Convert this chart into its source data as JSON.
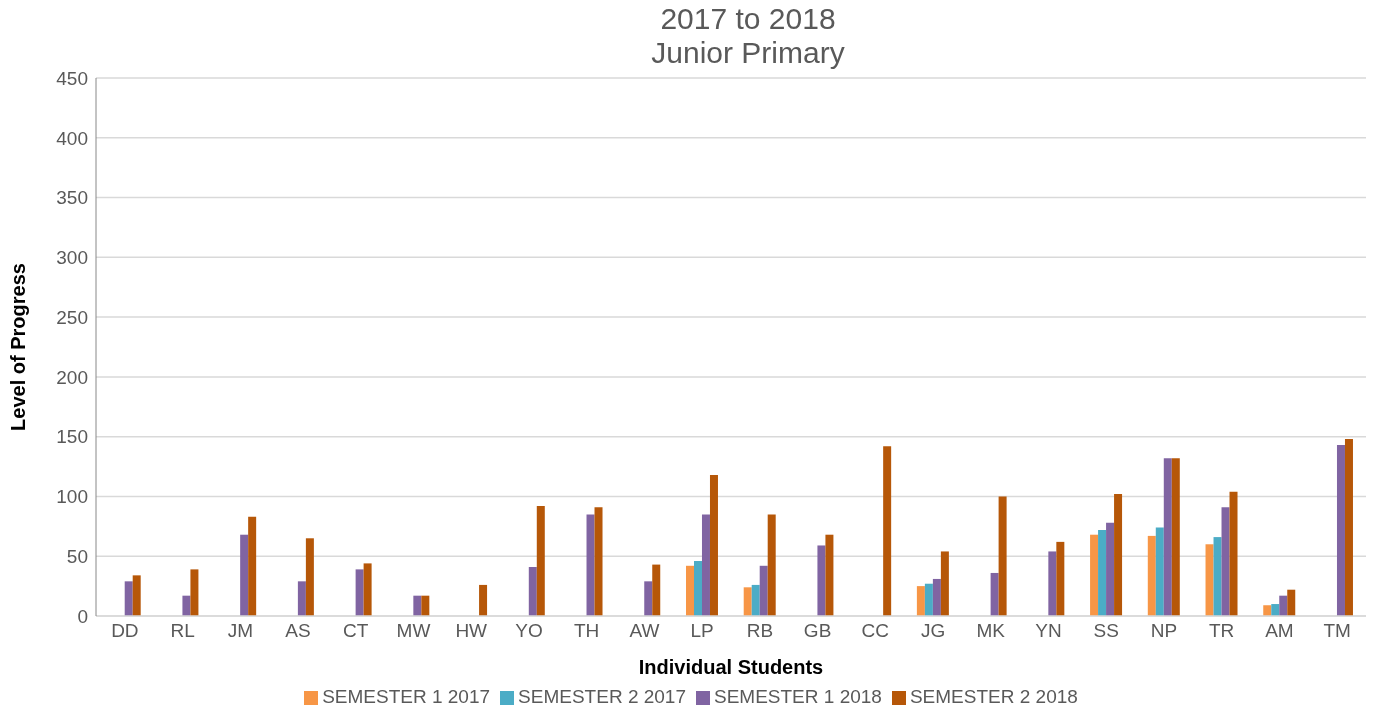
{
  "chart_data": {
    "type": "bar",
    "title": "2017 to 2018",
    "subtitle": "Junior Primary",
    "xlabel": "Individual Students",
    "ylabel": "Level of Progress",
    "categories": [
      "DD",
      "RL",
      "JM",
      "AS",
      "CT",
      "MW",
      "HW",
      "YO",
      "TH",
      "AW",
      "LP",
      "RB",
      "GB",
      "CC",
      "JG",
      "MK",
      "YN",
      "SS",
      "NP",
      "TR",
      "AM",
      "TM"
    ],
    "series": [
      {
        "name": "SEMESTER 1 2017",
        "color": "#f79646",
        "values": [
          null,
          null,
          null,
          null,
          null,
          null,
          null,
          null,
          null,
          null,
          42,
          24,
          null,
          null,
          25,
          null,
          null,
          68,
          67,
          60,
          9,
          null
        ]
      },
      {
        "name": "SEMESTER 2 2017",
        "color": "#4bacc6",
        "values": [
          null,
          null,
          null,
          null,
          null,
          null,
          null,
          null,
          null,
          null,
          46,
          26,
          null,
          null,
          27,
          null,
          null,
          72,
          74,
          66,
          10,
          null
        ]
      },
      {
        "name": "SEMESTER 1 2018",
        "color": "#8064a2",
        "values": [
          29,
          17,
          68,
          29,
          39,
          17,
          null,
          41,
          85,
          29,
          85,
          42,
          59,
          null,
          31,
          36,
          54,
          78,
          132,
          91,
          17,
          143
        ]
      },
      {
        "name": "SEMESTER 2 2018",
        "color": "#b65708",
        "values": [
          34,
          39,
          83,
          65,
          44,
          17,
          26,
          92,
          91,
          43,
          118,
          85,
          68,
          142,
          54,
          100,
          62,
          102,
          132,
          104,
          22,
          148
        ]
      }
    ],
    "ylim": [
      0,
      450
    ],
    "yticks": [
      0,
      50,
      100,
      150,
      200,
      250,
      300,
      350,
      400,
      450
    ],
    "grid": "y",
    "legend": "bottom"
  }
}
